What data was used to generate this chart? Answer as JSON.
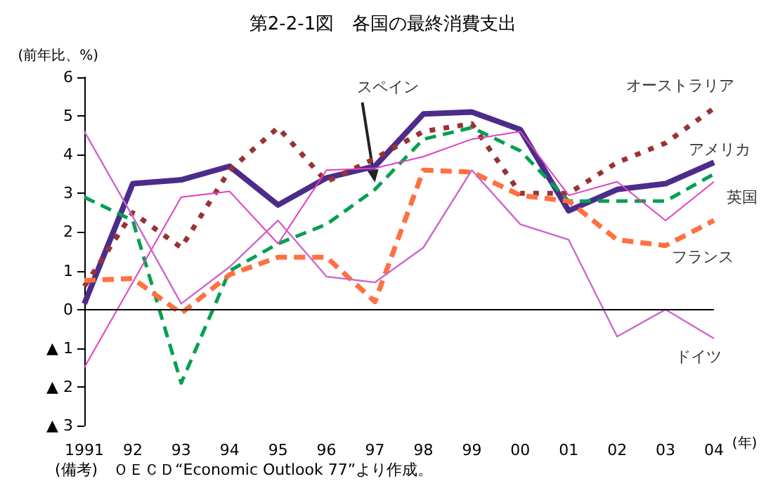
{
  "chart_data": {
    "type": "line",
    "title": "第2-2-1図　各国の最終消費支出",
    "ylabel": "(前年比、%)",
    "xlabel": "(年)",
    "categories": [
      "1991",
      "92",
      "93",
      "94",
      "95",
      "96",
      "97",
      "98",
      "99",
      "00",
      "01",
      "02",
      "03",
      "04"
    ],
    "series": [
      {
        "name": "アメリカ",
        "color": "#4b2c8a",
        "line_style": "solid",
        "values": [
          0.15,
          3.25,
          3.35,
          3.7,
          2.7,
          3.4,
          3.7,
          5.05,
          5.1,
          4.65,
          2.55,
          3.1,
          3.25,
          3.8
        ]
      },
      {
        "name": "オーストラリア",
        "color": "#993333",
        "line_style": "dotted",
        "values": [
          0.6,
          2.5,
          1.6,
          3.6,
          4.7,
          3.3,
          3.9,
          4.6,
          4.8,
          3.0,
          3.0,
          3.8,
          4.3,
          5.2
        ]
      },
      {
        "name": "スペイン",
        "color": "#00a050",
        "line_style": "dashed",
        "values": [
          2.9,
          2.3,
          -1.9,
          1.0,
          1.7,
          2.2,
          3.1,
          4.4,
          4.7,
          4.1,
          2.8,
          2.8,
          2.8,
          3.5
        ]
      },
      {
        "name": "英国",
        "color": "#e040c0",
        "line_style": "solid",
        "values": [
          -1.5,
          0.7,
          2.9,
          3.05,
          1.7,
          3.6,
          3.65,
          3.95,
          4.4,
          4.6,
          2.95,
          3.3,
          2.3,
          3.3
        ]
      },
      {
        "name": "フランス",
        "color": "#ff7040",
        "line_style": "dashed",
        "values": [
          0.75,
          0.8,
          -0.1,
          0.9,
          1.35,
          1.35,
          0.2,
          3.6,
          3.55,
          2.95,
          2.8,
          1.8,
          1.65,
          2.3
        ]
      },
      {
        "name": "ドイツ",
        "color": "#cc66cc",
        "line_style": "solid",
        "values": [
          4.6,
          2.4,
          0.15,
          1.1,
          2.3,
          0.85,
          0.7,
          1.6,
          3.6,
          2.2,
          1.8,
          -0.7,
          0.0,
          -0.75
        ]
      }
    ],
    "ylim": [
      -3,
      6
    ],
    "yticks": [
      {
        "value": -3,
        "label": "▲ 3"
      },
      {
        "value": -2,
        "label": "▲ 2"
      },
      {
        "value": -1,
        "label": "▲ 1"
      },
      0,
      1,
      2,
      3,
      4,
      5,
      6
    ],
    "ref_lines": [
      {
        "axis": "y",
        "value": 0,
        "color": "#000000",
        "line_style": "solid"
      }
    ],
    "annotations": [
      "(備考)　ＯＥＣＤ“Economic Outlook 77”より作成。"
    ],
    "grid": false,
    "legend": false,
    "marker": "none"
  }
}
